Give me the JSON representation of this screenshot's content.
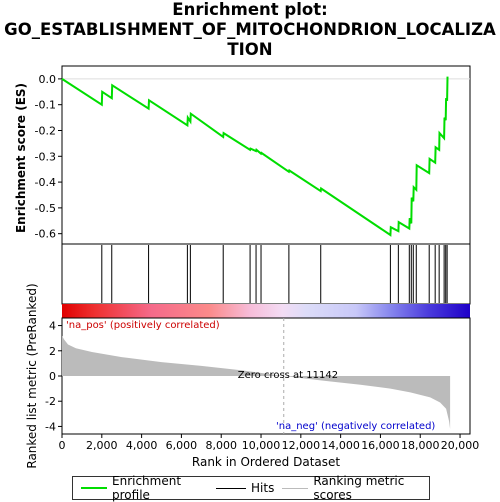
{
  "title_lines": [
    "Enrichment plot:",
    "GO_ESTABLISHMENT_OF_MITOCHONDRION_LOCALIZA",
    "TION"
  ],
  "colors": {
    "es_line": "#00dd00",
    "hit": "#000000",
    "metric_fill": "#bbbbbb",
    "pos_text": "#cc0000",
    "neg_text": "#0000cc",
    "zero_line": "#aaaaaa"
  },
  "chart_data": [
    {
      "type": "line",
      "name": "enrichment",
      "ylabel": "Enrichment score (ES)",
      "xlim": [
        0,
        20500
      ],
      "ylim": [
        -0.64,
        0.05
      ],
      "yticks": [
        0.0,
        -0.1,
        -0.2,
        -0.3,
        -0.4,
        -0.5,
        -0.6
      ],
      "ytick_labels": [
        "0.0",
        "-0.1",
        "-0.2",
        "-0.3",
        "-0.4",
        "-0.5",
        "-0.6"
      ],
      "x": [
        0,
        2000,
        2020,
        2500,
        2520,
        4350,
        4370,
        6300,
        6320,
        6450,
        6470,
        8100,
        8120,
        9450,
        9470,
        9750,
        9770,
        10000,
        10020,
        11400,
        11420,
        13000,
        13020,
        16500,
        16520,
        16900,
        16920,
        17450,
        17470,
        17550,
        17570,
        17650,
        17670,
        17800,
        17820,
        18450,
        18470,
        18750,
        18770,
        18950,
        18970,
        19200,
        19220,
        19280,
        19300,
        19350,
        19370,
        19420
      ],
      "y": [
        0.0,
        -0.1,
        -0.05,
        -0.075,
        -0.025,
        -0.115,
        -0.083,
        -0.18,
        -0.15,
        -0.165,
        -0.135,
        -0.225,
        -0.21,
        -0.275,
        -0.27,
        -0.28,
        -0.275,
        -0.29,
        -0.287,
        -0.36,
        -0.355,
        -0.435,
        -0.425,
        -0.605,
        -0.575,
        -0.59,
        -0.555,
        -0.58,
        -0.54,
        -0.56,
        -0.46,
        -0.475,
        -0.42,
        -0.43,
        -0.335,
        -0.365,
        -0.31,
        -0.325,
        -0.265,
        -0.275,
        -0.21,
        -0.23,
        -0.15,
        -0.16,
        -0.075,
        -0.085,
        0.005,
        0.005
      ]
    },
    {
      "type": "rug",
      "name": "hits",
      "x": [
        2000,
        2500,
        4350,
        6300,
        6450,
        8100,
        9450,
        9750,
        10000,
        11400,
        13000,
        16500,
        16900,
        17450,
        17550,
        17650,
        17800,
        18450,
        18750,
        18950,
        19200,
        19280,
        19350
      ]
    },
    {
      "type": "area",
      "name": "ranked_metric",
      "ylabel": "Ranked list metric (PreRanked)",
      "xlabel": "Rank in Ordered Dataset",
      "xlim": [
        0,
        20500
      ],
      "ylim": [
        -4.6,
        4.6
      ],
      "yticks": [
        4,
        2,
        0,
        -2,
        -4
      ],
      "ytick_labels": [
        "4",
        "2",
        "0",
        "-2",
        "-4"
      ],
      "xticks": [
        0,
        2000,
        4000,
        6000,
        8000,
        10000,
        12000,
        14000,
        16000,
        18000,
        20000
      ],
      "xtick_labels": [
        "0",
        "2,000",
        "4,000",
        "6,000",
        "8,000",
        "10,000",
        "12,000",
        "14,000",
        "16,000",
        "18,000",
        "20,000"
      ],
      "x": [
        0,
        100,
        300,
        700,
        1500,
        3000,
        5000,
        7000,
        9000,
        11142,
        13000,
        15000,
        16500,
        17500,
        18500,
        19000,
        19300,
        19450,
        19500
      ],
      "y": [
        3.2,
        2.9,
        2.5,
        2.2,
        1.9,
        1.5,
        1.1,
        0.8,
        0.45,
        0.0,
        -0.35,
        -0.7,
        -1.0,
        -1.3,
        -1.7,
        -2.1,
        -2.6,
        -3.6,
        -4.2
      ],
      "zero_cross": 11142,
      "zero_cross_label": "Zero cross at 11142",
      "pos_label": "'na_pos' (positively correlated)",
      "neg_label": "'na_neg' (negatively correlated)"
    }
  ],
  "legend": {
    "items": [
      "Enrichment profile",
      "Hits",
      "Ranking metric scores"
    ]
  }
}
